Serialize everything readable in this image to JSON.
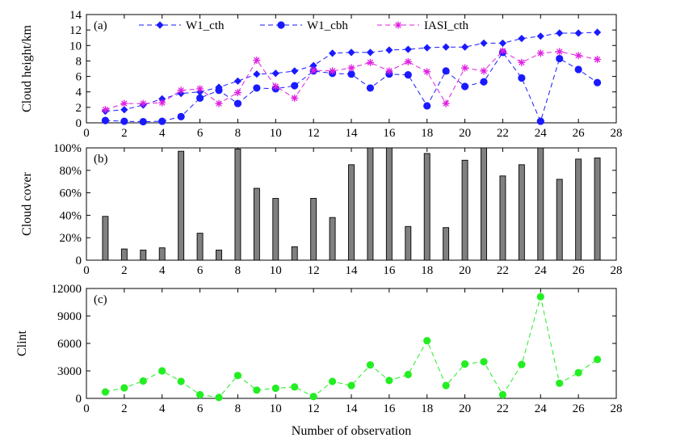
{
  "chart_data": [
    {
      "panel_label": "(a)",
      "type": "line",
      "ylabel": "Cloud height/km",
      "xlabel": "",
      "xlim": [
        0,
        28
      ],
      "ylim": [
        0,
        14
      ],
      "xticks": [
        "0",
        "2",
        "4",
        "6",
        "8",
        "10",
        "12",
        "14",
        "16",
        "18",
        "20",
        "22",
        "24",
        "26",
        "28"
      ],
      "yticks": [
        "0",
        "2",
        "4",
        "6",
        "8",
        "10",
        "12",
        "14"
      ],
      "legend_position": "top",
      "series": [
        {
          "name": "W1_cth",
          "color": "#1a1aff",
          "marker": "diamond",
          "x": [
            1,
            2,
            3,
            4,
            5,
            6,
            7,
            8,
            9,
            10,
            11,
            12,
            13,
            14,
            15,
            16,
            17,
            18,
            19,
            20,
            21,
            22,
            23,
            24,
            25,
            26,
            27
          ],
          "values": [
            1.5,
            1.7,
            2.3,
            3.1,
            3.8,
            4.0,
            4.6,
            5.4,
            6.3,
            6.4,
            6.7,
            7.4,
            9.0,
            9.1,
            9.1,
            9.4,
            9.5,
            9.7,
            9.8,
            9.8,
            10.3,
            10.3,
            10.9,
            11.2,
            11.6,
            11.6,
            11.7
          ]
        },
        {
          "name": "W1_cbh",
          "color": "#1a1aff",
          "marker": "circle",
          "x": [
            1,
            2,
            3,
            4,
            5,
            6,
            7,
            8,
            9,
            10,
            11,
            12,
            13,
            14,
            15,
            16,
            17,
            18,
            19,
            20,
            21,
            22,
            23,
            24,
            25,
            26,
            27
          ],
          "values": [
            0.3,
            0.2,
            0.15,
            0.2,
            0.8,
            3.2,
            4.2,
            2.5,
            4.5,
            4.4,
            4.8,
            6.7,
            6.4,
            6.3,
            4.5,
            6.3,
            6.2,
            2.2,
            6.7,
            4.7,
            5.3,
            9.1,
            5.8,
            0.2,
            8.3,
            6.9,
            5.2
          ]
        },
        {
          "name": "IASI_cth",
          "color": "#e020e0",
          "marker": "star",
          "x": [
            1,
            2,
            3,
            4,
            5,
            6,
            7,
            8,
            9,
            10,
            11,
            12,
            13,
            14,
            15,
            16,
            17,
            18,
            19,
            20,
            21,
            22,
            23,
            24,
            25,
            26,
            27
          ],
          "values": [
            1.7,
            2.5,
            2.5,
            2.6,
            4.2,
            4.4,
            2.5,
            3.9,
            8.1,
            4.7,
            3.2,
            6.8,
            6.7,
            7.1,
            7.8,
            6.7,
            7.9,
            6.6,
            2.5,
            7.1,
            6.7,
            9.3,
            7.8,
            9.0,
            9.2,
            8.7,
            8.2
          ]
        }
      ]
    },
    {
      "panel_label": "(b)",
      "type": "bar",
      "ylabel": "Cloud cover",
      "xlabel": "",
      "xlim": [
        0,
        28
      ],
      "ylim": [
        0,
        100
      ],
      "xticks": [
        "0",
        "2",
        "4",
        "6",
        "8",
        "10",
        "12",
        "14",
        "16",
        "18",
        "20",
        "22",
        "24",
        "26",
        "28"
      ],
      "yticks": [
        "0",
        "20%",
        "40%",
        "60%",
        "80%",
        "100%"
      ],
      "bar_color": "#808080",
      "x": [
        1,
        2,
        3,
        4,
        5,
        6,
        7,
        8,
        9,
        10,
        11,
        12,
        13,
        14,
        15,
        16,
        17,
        18,
        19,
        20,
        21,
        22,
        23,
        24,
        25,
        26,
        27
      ],
      "values": [
        39,
        10,
        9,
        11,
        97,
        24,
        9,
        99,
        64,
        55,
        12,
        55,
        38,
        85,
        100,
        100,
        30,
        95,
        29,
        89,
        100,
        75,
        85,
        100,
        72,
        90,
        91
      ]
    },
    {
      "panel_label": "(c)",
      "type": "line",
      "ylabel": "Clint",
      "xlabel": "Number of observation",
      "xlim": [
        0,
        28
      ],
      "ylim": [
        0,
        12000
      ],
      "xticks": [
        "0",
        "2",
        "4",
        "6",
        "8",
        "10",
        "12",
        "14",
        "16",
        "18",
        "20",
        "22",
        "24",
        "26",
        "28"
      ],
      "yticks": [
        "0",
        "3000",
        "6000",
        "9000",
        "12000"
      ],
      "series": [
        {
          "color": "#22ee22",
          "marker": "circle",
          "x": [
            1,
            2,
            3,
            4,
            5,
            6,
            7,
            8,
            9,
            10,
            11,
            12,
            13,
            14,
            15,
            16,
            17,
            18,
            19,
            20,
            21,
            22,
            23,
            24,
            25,
            26,
            27
          ],
          "values": [
            700,
            1150,
            1900,
            3000,
            1850,
            400,
            100,
            2500,
            900,
            1100,
            1250,
            200,
            1850,
            1400,
            3650,
            1950,
            2600,
            6300,
            1400,
            3750,
            4000,
            400,
            3700,
            11100,
            1650,
            2800,
            4250
          ]
        }
      ]
    }
  ]
}
